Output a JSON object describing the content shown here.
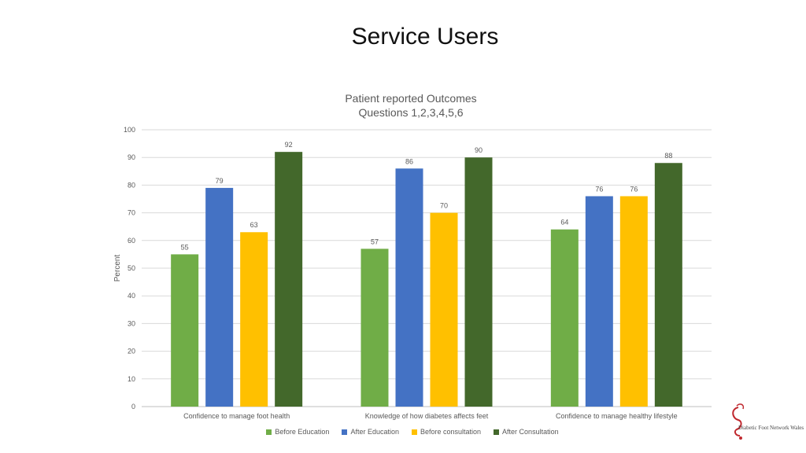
{
  "slide": {
    "title": "Service Users"
  },
  "logo": {
    "text": "Diabetic Foot Network Wales"
  },
  "colors": {
    "before_education": "#70ad47",
    "after_education": "#4472c4",
    "before_consultation": "#ffc000",
    "after_consultation": "#43682b",
    "logo_red": "#c0282e"
  },
  "chart_data": {
    "type": "bar",
    "title": "Patient reported Outcomes",
    "subtitle": "Questions 1,2,3,4,5,6",
    "xlabel": "",
    "ylabel": "Percent",
    "ylim": [
      0,
      100
    ],
    "yticks": [
      0,
      10,
      20,
      30,
      40,
      50,
      60,
      70,
      80,
      90,
      100
    ],
    "grid": true,
    "legend_position": "bottom",
    "categories": [
      "Confidence to manage foot health",
      "Knowledge of how diabetes affects feet",
      "Confidence to manage healthy lifestyle"
    ],
    "series": [
      {
        "name": "Before Education",
        "color": "#70ad47",
        "values": [
          55,
          57,
          64
        ]
      },
      {
        "name": "After Education",
        "color": "#4472c4",
        "values": [
          79,
          86,
          76
        ]
      },
      {
        "name": "Before consultation",
        "color": "#ffc000",
        "values": [
          63,
          70,
          76
        ]
      },
      {
        "name": "After Consultation",
        "color": "#43682b",
        "values": [
          92,
          90,
          88
        ]
      }
    ]
  }
}
